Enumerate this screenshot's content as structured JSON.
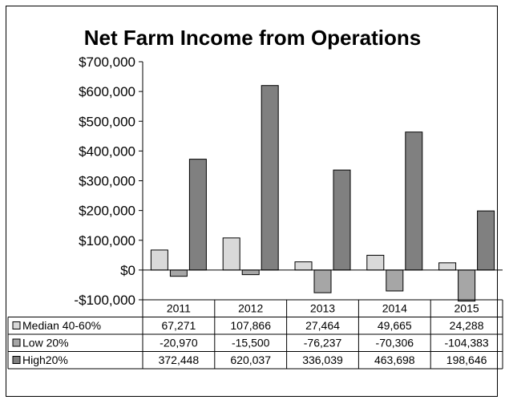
{
  "chart_data": {
    "type": "bar",
    "title": "Net Farm Income from Operations",
    "categories": [
      "2011",
      "2012",
      "2013",
      "2014",
      "2015"
    ],
    "ylim": [
      -100000,
      700000
    ],
    "yticks": [
      -100000,
      0,
      100000,
      200000,
      300000,
      400000,
      500000,
      600000,
      700000
    ],
    "ytick_labels": [
      "-$100,000",
      "$0",
      "$100,000",
      "$200,000",
      "$300,000",
      "$400,000",
      "$500,000",
      "$600,000",
      "$700,000"
    ],
    "grid": false,
    "legend": "data-table",
    "series": [
      {
        "name": "Median 40-60%",
        "color": "#d9d9d9",
        "values": [
          67271,
          107866,
          27464,
          49665,
          24288
        ],
        "labels": [
          "67,271",
          "107,866",
          "27,464",
          "49,665",
          "24,288"
        ]
      },
      {
        "name": "Low 20%",
        "color": "#a6a6a6",
        "values": [
          -20970,
          -15500,
          -76237,
          -70306,
          -104383
        ],
        "labels": [
          "-20,970",
          "-15,500",
          "-76,237",
          "-70,306",
          "-104,383"
        ]
      },
      {
        "name": "High20%",
        "color": "#808080",
        "values": [
          372448,
          620037,
          336039,
          463698,
          198646
        ],
        "labels": [
          "372,448",
          "620,037",
          "336,039",
          "463,698",
          "198,646"
        ]
      }
    ]
  }
}
